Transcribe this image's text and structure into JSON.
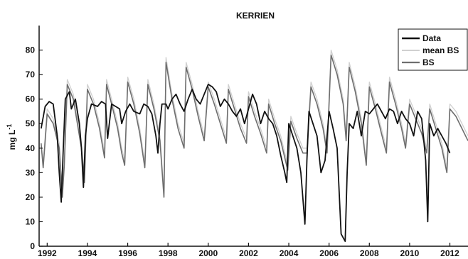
{
  "chart_data": {
    "type": "line",
    "title": "KERRIEN",
    "xlabel": "",
    "ylabel": "mg L",
    "ylabel_superscript": "-1",
    "xlim": [
      1991.6,
      2012.9
    ],
    "ylim": [
      0,
      90
    ],
    "xticks": [
      1992,
      1994,
      1996,
      1998,
      2000,
      2002,
      2004,
      2006,
      2008,
      2010,
      2012
    ],
    "xtick_labels": [
      "1992",
      "1994",
      "1996",
      "1998",
      "2000",
      "2002",
      "2004",
      "2006",
      "2008",
      "2010",
      "2012"
    ],
    "yticks": [
      0,
      10,
      20,
      30,
      40,
      50,
      60,
      70,
      80
    ],
    "ytick_labels": [
      "0",
      "10",
      "20",
      "30",
      "40",
      "50",
      "60",
      "70",
      "80"
    ],
    "grid": false,
    "legend_position": "top-right",
    "series": [
      {
        "name": "Data",
        "color": "#111111",
        "width": 1.8,
        "x": [
          1991.7,
          1991.9,
          1992.1,
          1992.3,
          1992.5,
          1992.6,
          1992.7,
          1992.8,
          1992.9,
          1993.1,
          1993.2,
          1993.4,
          1993.5,
          1993.6,
          1993.7,
          1993.8,
          1993.9,
          1994.0,
          1994.2,
          1994.5,
          1994.7,
          1994.9,
          1995.0,
          1995.2,
          1995.4,
          1995.6,
          1995.7,
          1995.9,
          1996.1,
          1996.3,
          1996.6,
          1996.8,
          1997.0,
          1997.2,
          1997.4,
          1997.5,
          1997.6,
          1997.7,
          1997.9,
          1998.0,
          1998.2,
          1998.4,
          1998.6,
          1998.8,
          1999.0,
          1999.2,
          1999.4,
          1999.6,
          1999.8,
          2000.0,
          2000.2,
          2000.4,
          2000.6,
          2000.8,
          2001.0,
          2001.2,
          2001.4,
          2001.6,
          2001.8,
          2002.0,
          2002.2,
          2002.4,
          2002.6,
          2002.8,
          2003.0,
          2003.2,
          2003.4,
          2003.6,
          2003.8,
          2003.9,
          2004.0,
          2004.2,
          2004.4,
          2004.6,
          2004.8,
          2004.9,
          2005.0,
          2005.2,
          2005.4,
          2005.6,
          2005.8,
          2006.0,
          2006.2,
          2006.4,
          2006.6,
          2006.8,
          2006.9,
          2007.0,
          2007.2,
          2007.4,
          2007.6,
          2007.8,
          2008.0,
          2008.2,
          2008.4,
          2008.6,
          2008.8,
          2009.0,
          2009.2,
          2009.4,
          2009.6,
          2009.8,
          2010.0,
          2010.2,
          2010.4,
          2010.6,
          2010.8,
          2010.9,
          2011.0,
          2011.2,
          2011.4,
          2011.6,
          2011.8,
          2012.0
        ],
        "values": [
          48,
          57,
          59,
          58,
          45,
          30,
          18,
          40,
          60,
          63,
          56,
          60,
          55,
          50,
          40,
          24,
          45,
          52,
          58,
          57,
          59,
          58,
          44,
          58,
          57,
          56,
          50,
          55,
          58,
          55,
          54,
          58,
          57,
          54,
          45,
          38,
          50,
          58,
          58,
          56,
          60,
          62,
          58,
          55,
          60,
          64,
          60,
          58,
          62,
          66,
          65,
          63,
          57,
          60,
          58,
          55,
          53,
          56,
          50,
          56,
          62,
          58,
          50,
          55,
          52,
          50,
          45,
          37,
          30,
          26,
          50,
          45,
          40,
          30,
          9,
          35,
          55,
          50,
          45,
          30,
          35,
          55,
          48,
          40,
          5,
          2,
          30,
          50,
          48,
          55,
          45,
          55,
          54,
          56,
          58,
          55,
          52,
          56,
          55,
          50,
          55,
          52,
          50,
          45,
          55,
          52,
          35,
          10,
          50,
          45,
          48,
          45,
          42,
          38
        ]
      },
      {
        "name": "mean BS",
        "color": "#d0d0d0",
        "width": 1.3,
        "x": [
          1991.7,
          1991.8,
          1992.0,
          1992.3,
          1992.6,
          1992.75,
          1992.85,
          1993.0,
          1993.3,
          1993.5,
          1993.7,
          1993.85,
          1994.0,
          1994.3,
          1994.6,
          1994.85,
          1994.95,
          1995.2,
          1995.5,
          1995.7,
          1995.85,
          1996.0,
          1996.3,
          1996.6,
          1996.85,
          1997.0,
          1997.3,
          1997.6,
          1997.8,
          1997.9,
          1998.2,
          1998.5,
          1998.8,
          1998.9,
          1999.2,
          1999.5,
          1999.8,
          2000.0,
          2000.3,
          2000.6,
          2000.9,
          2001.0,
          2001.3,
          2001.6,
          2001.9,
          2002.0,
          2002.3,
          2002.6,
          2002.9,
          2003.0,
          2003.3,
          2003.6,
          2003.95,
          2004.1,
          2004.4,
          2004.7,
          2004.9,
          2005.1,
          2005.4,
          2005.7,
          2005.9,
          2006.1,
          2006.4,
          2006.7,
          2006.85,
          2007.0,
          2007.3,
          2007.6,
          2007.85,
          2008.0,
          2008.3,
          2008.6,
          2008.85,
          2009.0,
          2009.3,
          2009.6,
          2009.8,
          2010.0,
          2010.3,
          2010.6,
          2010.85,
          2011.0,
          2011.3,
          2011.6,
          2011.85,
          2012.0,
          2012.3,
          2012.6,
          2012.9
        ],
        "values": [
          40,
          34,
          56,
          52,
          42,
          22,
          35,
          68,
          62,
          52,
          42,
          28,
          66,
          60,
          50,
          38,
          68,
          60,
          50,
          40,
          35,
          69,
          60,
          48,
          34,
          68,
          58,
          45,
          22,
          77,
          62,
          50,
          42,
          75,
          66,
          55,
          45,
          67,
          60,
          52,
          44,
          66,
          58,
          50,
          44,
          63,
          55,
          48,
          40,
          60,
          52,
          45,
          33,
          53,
          46,
          40,
          40,
          67,
          60,
          50,
          40,
          80,
          72,
          60,
          45,
          75,
          65,
          52,
          35,
          67,
          58,
          48,
          40,
          69,
          60,
          50,
          42,
          60,
          54,
          48,
          40,
          58,
          50,
          42,
          32,
          58,
          55,
          50,
          45
        ]
      },
      {
        "name": "BS",
        "color": "#6e6e6e",
        "width": 1.6,
        "x": [
          1991.7,
          1991.8,
          1992.0,
          1992.3,
          1992.6,
          1992.75,
          1992.85,
          1993.0,
          1993.3,
          1993.5,
          1993.7,
          1993.85,
          1994.0,
          1994.3,
          1994.6,
          1994.85,
          1994.95,
          1995.2,
          1995.5,
          1995.7,
          1995.85,
          1996.0,
          1996.3,
          1996.6,
          1996.85,
          1997.0,
          1997.3,
          1997.6,
          1997.8,
          1997.9,
          1998.2,
          1998.5,
          1998.8,
          1998.9,
          1999.2,
          1999.5,
          1999.8,
          2000.0,
          2000.3,
          2000.6,
          2000.9,
          2001.0,
          2001.3,
          2001.6,
          2001.9,
          2002.0,
          2002.3,
          2002.6,
          2002.9,
          2003.0,
          2003.3,
          2003.6,
          2003.95,
          2004.1,
          2004.4,
          2004.7,
          2004.9,
          2005.1,
          2005.4,
          2005.7,
          2005.9,
          2006.1,
          2006.4,
          2006.7,
          2006.85,
          2007.0,
          2007.3,
          2007.6,
          2007.85,
          2008.0,
          2008.3,
          2008.6,
          2008.85,
          2009.0,
          2009.3,
          2009.6,
          2009.8,
          2010.0,
          2010.3,
          2010.6,
          2010.85,
          2011.0,
          2011.3,
          2011.6,
          2011.85,
          2012.0,
          2012.3,
          2012.6,
          2012.9
        ],
        "values": [
          42,
          32,
          54,
          50,
          40,
          20,
          33,
          66,
          60,
          50,
          40,
          26,
          64,
          58,
          48,
          36,
          66,
          58,
          48,
          38,
          33,
          67,
          58,
          46,
          32,
          66,
          56,
          43,
          20,
          75,
          60,
          48,
          40,
          73,
          64,
          53,
          43,
          65,
          58,
          50,
          42,
          64,
          56,
          48,
          42,
          61,
          53,
          46,
          38,
          58,
          50,
          43,
          31,
          51,
          44,
          38,
          38,
          65,
          58,
          48,
          38,
          78,
          70,
          58,
          43,
          73,
          63,
          50,
          33,
          65,
          56,
          46,
          38,
          67,
          58,
          48,
          40,
          58,
          52,
          46,
          38,
          56,
          48,
          40,
          30,
          56,
          53,
          48,
          43
        ]
      }
    ]
  }
}
